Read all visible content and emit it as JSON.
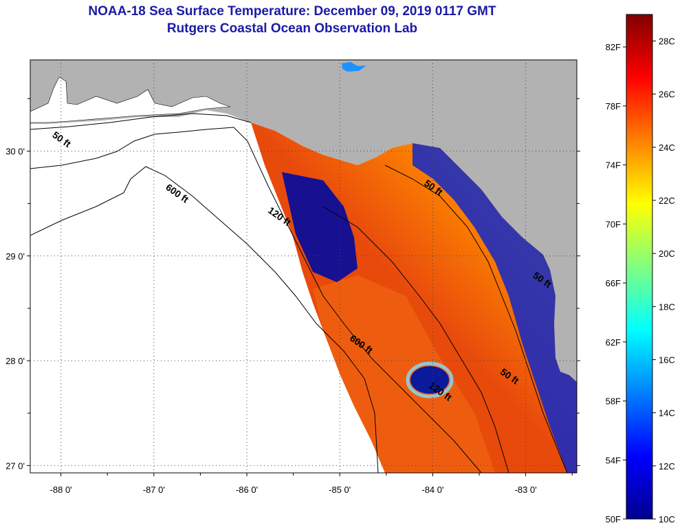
{
  "title": {
    "line1": "NOAA-18 Sea Surface Temperature:  December 09, 2019 0117 GMT",
    "line2": "Rutgers Coastal Ocean Observation Lab"
  },
  "map": {
    "lon_range": [
      -88.33,
      -82.45
    ],
    "lat_range": [
      26.93,
      30.87
    ],
    "lon_ticks": [
      {
        "value": -88,
        "label": "-88 0'"
      },
      {
        "value": -87,
        "label": "-87 0'"
      },
      {
        "value": -86,
        "label": "-86 0'"
      },
      {
        "value": -85,
        "label": "-85 0'"
      },
      {
        "value": -84,
        "label": "-84 0'"
      },
      {
        "value": -83,
        "label": "-83 0'"
      }
    ],
    "lat_ticks": [
      {
        "value": 30,
        "label": "30 0'"
      },
      {
        "value": 29,
        "label": "29 0'"
      },
      {
        "value": 28,
        "label": "28 0'"
      },
      {
        "value": 27,
        "label": "27 0'"
      }
    ],
    "grid": "dotted",
    "contour_labels": [
      {
        "text": "50 ft",
        "lon": -88.1,
        "lat": 30.14
      },
      {
        "text": "600 ft",
        "lon": -86.88,
        "lat": 29.64
      },
      {
        "text": "120 ft",
        "lon": -85.78,
        "lat": 29.42
      },
      {
        "text": "50 ft",
        "lon": -84.1,
        "lat": 29.68
      },
      {
        "text": "600 ft",
        "lon": -84.9,
        "lat": 28.2
      },
      {
        "text": "120 ft",
        "lon": -84.05,
        "lat": 27.75
      },
      {
        "text": "50 ft",
        "lon": -83.28,
        "lat": 27.88
      },
      {
        "text": "50 ft",
        "lon": -82.93,
        "lat": 28.8
      }
    ],
    "colors": {
      "land": "#b2b2b2",
      "water_no_data": "#ffffff",
      "contour": "#000000"
    }
  },
  "colorbar": {
    "f_labels": [
      "82F",
      "78F",
      "74F",
      "70F",
      "66F",
      "62F",
      "58F",
      "54F",
      "50F"
    ],
    "c_labels": [
      "28C",
      "26C",
      "24C",
      "22C",
      "20C",
      "18C",
      "16C",
      "14C",
      "12C",
      "10C"
    ],
    "range_c": [
      10,
      29
    ],
    "stops": [
      "#00008f",
      "#0000ff",
      "#0080ff",
      "#00ffff",
      "#80ff80",
      "#ffff00",
      "#ff8000",
      "#ff0000",
      "#800000"
    ]
  }
}
